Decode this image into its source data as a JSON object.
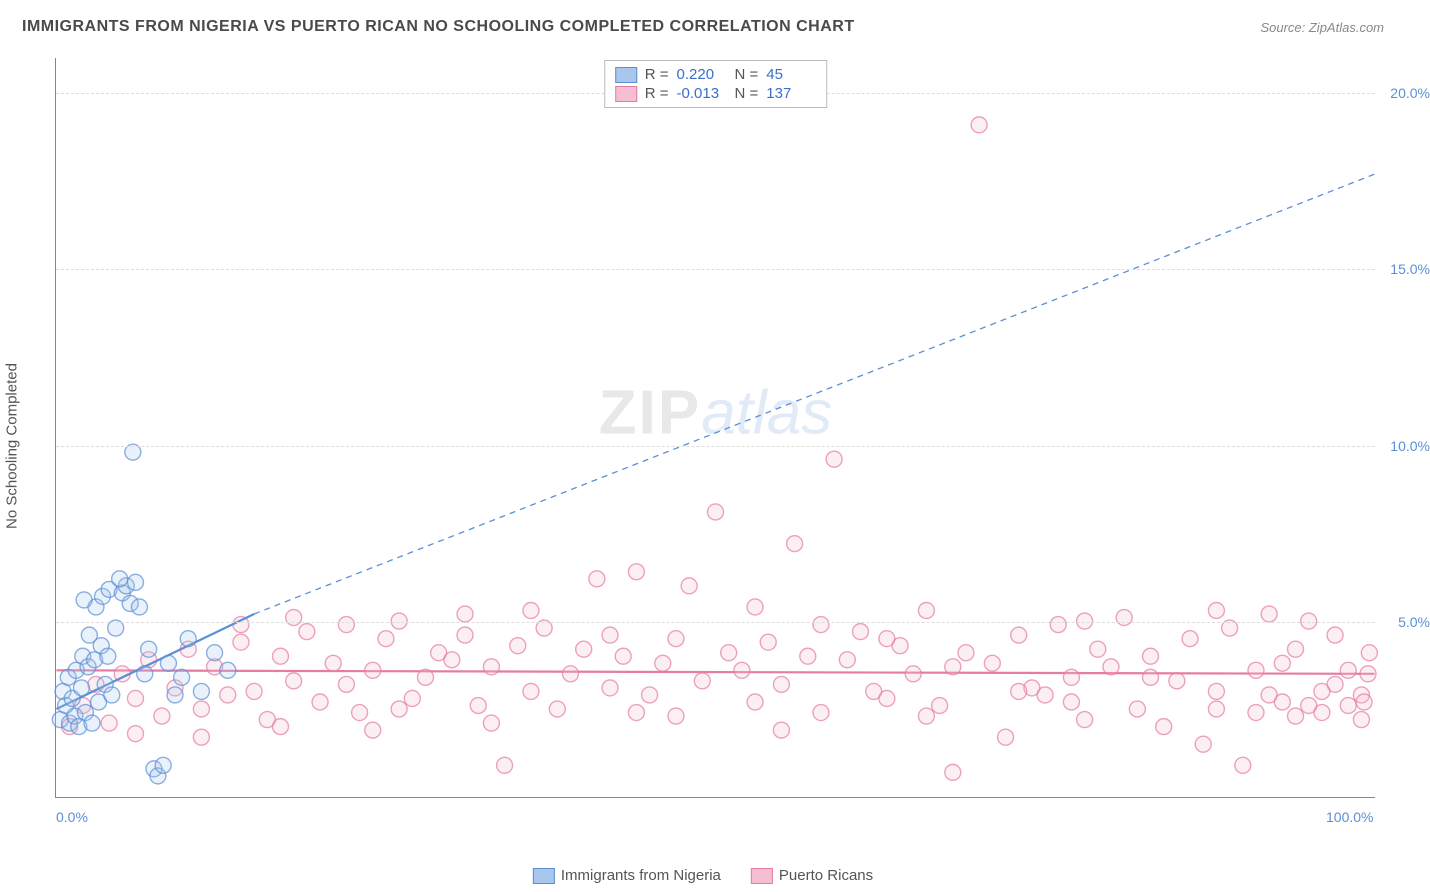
{
  "title": "IMMIGRANTS FROM NIGERIA VS PUERTO RICAN NO SCHOOLING COMPLETED CORRELATION CHART",
  "source": "Source: ZipAtlas.com",
  "ylabel": "No Schooling Completed",
  "watermark": {
    "part1": "ZIP",
    "part2": "atlas"
  },
  "chart": {
    "type": "scatter",
    "xlim": [
      0,
      100
    ],
    "ylim": [
      0,
      21
    ],
    "yticks": [
      5,
      10,
      15,
      20
    ],
    "ytick_labels": [
      "5.0%",
      "10.0%",
      "15.0%",
      "20.0%"
    ],
    "xticks": [
      0,
      100
    ],
    "xtick_labels": [
      "0.0%",
      "100.0%"
    ],
    "background_color": "#ffffff",
    "grid_color": "#dddddd",
    "grid_dash": "4,3",
    "marker_radius": 8,
    "marker_fill_opacity": 0.25,
    "marker_stroke_width": 1.4,
    "series": [
      {
        "name": "Immigrants from Nigeria",
        "color": "#5b8fd6",
        "fill": "#a9c6ec",
        "r_value": "0.220",
        "n_value": "45",
        "trend": {
          "x1": 0,
          "y1": 2.5,
          "x2": 15,
          "y2": 5.2,
          "extend_x2": 100,
          "extend_y2": 17.7,
          "solid_width": 2.2,
          "dash": "6,5"
        },
        "points": [
          [
            0.3,
            2.2
          ],
          [
            0.5,
            3.0
          ],
          [
            0.7,
            2.6
          ],
          [
            0.9,
            3.4
          ],
          [
            1.0,
            2.1
          ],
          [
            1.2,
            2.8
          ],
          [
            1.4,
            2.3
          ],
          [
            1.5,
            3.6
          ],
          [
            1.7,
            2.0
          ],
          [
            1.9,
            3.1
          ],
          [
            2.0,
            4.0
          ],
          [
            2.2,
            2.4
          ],
          [
            2.4,
            3.7
          ],
          [
            2.5,
            4.6
          ],
          [
            2.7,
            2.1
          ],
          [
            2.9,
            3.9
          ],
          [
            3.0,
            5.4
          ],
          [
            3.2,
            2.7
          ],
          [
            3.4,
            4.3
          ],
          [
            3.5,
            5.7
          ],
          [
            3.7,
            3.2
          ],
          [
            3.9,
            4.0
          ],
          [
            4.0,
            5.9
          ],
          [
            4.2,
            2.9
          ],
          [
            4.5,
            4.8
          ],
          [
            5.0,
            5.8
          ],
          [
            5.3,
            6.0
          ],
          [
            5.6,
            5.5
          ],
          [
            6.0,
            6.1
          ],
          [
            6.3,
            5.4
          ],
          [
            6.7,
            3.5
          ],
          [
            7.0,
            4.2
          ],
          [
            7.4,
            0.8
          ],
          [
            7.7,
            0.6
          ],
          [
            8.1,
            0.9
          ],
          [
            8.5,
            3.8
          ],
          [
            9.0,
            2.9
          ],
          [
            9.5,
            3.4
          ],
          [
            10.0,
            4.5
          ],
          [
            11.0,
            3.0
          ],
          [
            12.0,
            4.1
          ],
          [
            13.0,
            3.6
          ],
          [
            5.8,
            9.8
          ],
          [
            2.1,
            5.6
          ],
          [
            4.8,
            6.2
          ]
        ]
      },
      {
        "name": "Puerto Ricans",
        "color": "#e67ba4",
        "fill": "#f5bed2",
        "r_value": "-0.013",
        "n_value": "137",
        "trend": {
          "x1": 0,
          "y1": 3.6,
          "x2": 100,
          "y2": 3.5,
          "solid_width": 2.2
        },
        "points": [
          [
            1,
            2.0
          ],
          [
            2,
            2.6
          ],
          [
            3,
            3.2
          ],
          [
            4,
            2.1
          ],
          [
            5,
            3.5
          ],
          [
            6,
            2.8
          ],
          [
            7,
            3.9
          ],
          [
            8,
            2.3
          ],
          [
            9,
            3.1
          ],
          [
            10,
            4.2
          ],
          [
            11,
            2.5
          ],
          [
            12,
            3.7
          ],
          [
            13,
            2.9
          ],
          [
            14,
            4.4
          ],
          [
            15,
            3.0
          ],
          [
            16,
            2.2
          ],
          [
            17,
            4.0
          ],
          [
            18,
            3.3
          ],
          [
            19,
            4.7
          ],
          [
            20,
            2.7
          ],
          [
            21,
            3.8
          ],
          [
            22,
            4.9
          ],
          [
            23,
            2.4
          ],
          [
            24,
            3.6
          ],
          [
            25,
            4.5
          ],
          [
            26,
            5.0
          ],
          [
            27,
            2.8
          ],
          [
            28,
            3.4
          ],
          [
            29,
            4.1
          ],
          [
            30,
            3.9
          ],
          [
            31,
            4.6
          ],
          [
            32,
            2.6
          ],
          [
            33,
            3.7
          ],
          [
            34,
            0.9
          ],
          [
            35,
            4.3
          ],
          [
            36,
            3.0
          ],
          [
            37,
            4.8
          ],
          [
            38,
            2.5
          ],
          [
            39,
            3.5
          ],
          [
            40,
            4.2
          ],
          [
            41,
            6.2
          ],
          [
            42,
            3.1
          ],
          [
            43,
            4.0
          ],
          [
            44,
            6.4
          ],
          [
            45,
            2.9
          ],
          [
            46,
            3.8
          ],
          [
            47,
            4.5
          ],
          [
            48,
            6.0
          ],
          [
            49,
            3.3
          ],
          [
            50,
            8.1
          ],
          [
            51,
            4.1
          ],
          [
            52,
            3.6
          ],
          [
            53,
            2.7
          ],
          [
            54,
            4.4
          ],
          [
            55,
            3.2
          ],
          [
            56,
            7.2
          ],
          [
            57,
            4.0
          ],
          [
            58,
            2.4
          ],
          [
            59,
            9.6
          ],
          [
            60,
            3.9
          ],
          [
            61,
            4.7
          ],
          [
            62,
            3.0
          ],
          [
            63,
            2.8
          ],
          [
            64,
            4.3
          ],
          [
            65,
            3.5
          ],
          [
            66,
            5.3
          ],
          [
            67,
            2.6
          ],
          [
            68,
            0.7
          ],
          [
            69,
            4.1
          ],
          [
            70,
            19.1
          ],
          [
            71,
            3.8
          ],
          [
            72,
            1.7
          ],
          [
            73,
            4.6
          ],
          [
            74,
            3.1
          ],
          [
            75,
            2.9
          ],
          [
            76,
            4.9
          ],
          [
            77,
            3.4
          ],
          [
            78,
            2.2
          ],
          [
            79,
            4.2
          ],
          [
            80,
            3.7
          ],
          [
            81,
            5.1
          ],
          [
            82,
            2.5
          ],
          [
            83,
            4.0
          ],
          [
            84,
            2.0
          ],
          [
            85,
            3.3
          ],
          [
            86,
            4.5
          ],
          [
            87,
            1.5
          ],
          [
            88,
            3.0
          ],
          [
            89,
            4.8
          ],
          [
            90,
            0.9
          ],
          [
            91,
            3.6
          ],
          [
            92,
            5.2
          ],
          [
            93,
            2.7
          ],
          [
            94,
            2.3
          ],
          [
            95,
            5.0
          ],
          [
            96,
            2.4
          ],
          [
            97,
            3.2
          ],
          [
            98,
            2.6
          ],
          [
            99,
            2.9
          ],
          [
            99.5,
            3.5
          ],
          [
            14,
            4.9
          ],
          [
            18,
            5.1
          ],
          [
            22,
            3.2
          ],
          [
            26,
            2.5
          ],
          [
            31,
            5.2
          ],
          [
            36,
            5.3
          ],
          [
            42,
            4.6
          ],
          [
            47,
            2.3
          ],
          [
            53,
            5.4
          ],
          [
            58,
            4.9
          ],
          [
            63,
            4.5
          ],
          [
            68,
            3.7
          ],
          [
            73,
            3.0
          ],
          [
            78,
            5.0
          ],
          [
            83,
            3.4
          ],
          [
            88,
            5.3
          ],
          [
            92,
            2.9
          ],
          [
            95,
            2.6
          ],
          [
            97,
            4.6
          ],
          [
            99,
            2.2
          ],
          [
            6,
            1.8
          ],
          [
            11,
            1.7
          ],
          [
            17,
            2.0
          ],
          [
            24,
            1.9
          ],
          [
            33,
            2.1
          ],
          [
            44,
            2.4
          ],
          [
            55,
            1.9
          ],
          [
            66,
            2.3
          ],
          [
            77,
            2.7
          ],
          [
            88,
            2.5
          ],
          [
            91,
            2.4
          ],
          [
            93,
            3.8
          ],
          [
            94,
            4.2
          ],
          [
            96,
            3.0
          ],
          [
            98,
            3.6
          ],
          [
            99.2,
            2.7
          ],
          [
            99.6,
            4.1
          ]
        ]
      }
    ]
  },
  "legend": {
    "series1_label": "Immigrants from Nigeria",
    "series2_label": "Puerto Ricans"
  },
  "stats_labels": {
    "r": "R =",
    "n": "N ="
  }
}
